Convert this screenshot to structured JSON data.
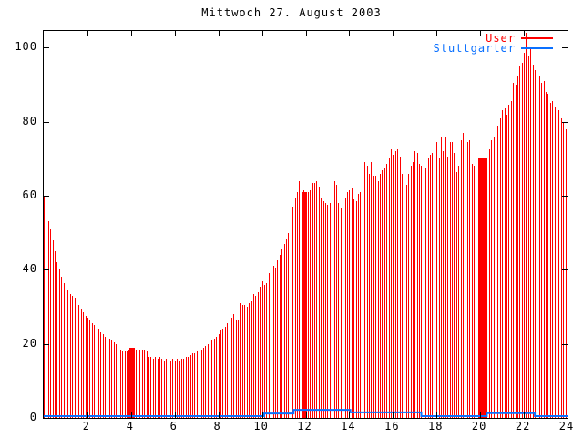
{
  "title": "Mittwoch 27. August 2003",
  "legend": {
    "entries": [
      {
        "label": "User",
        "color": "#ff0000"
      },
      {
        "label": "Stuttgarter",
        "color": "#0a70ff"
      }
    ]
  },
  "colors": {
    "foreground": "#000000",
    "background": "#ffffff",
    "user_series": "#ff0000",
    "stuttgarter_series": "#0a70ff"
  },
  "chart_data": {
    "type": "bar",
    "title": "Mittwoch 27. August 2003",
    "xlabel": "",
    "ylabel": "",
    "xlim": [
      0,
      24
    ],
    "ylim": [
      0,
      104.5
    ],
    "xticks": [
      2,
      4,
      6,
      8,
      10,
      12,
      14,
      16,
      18,
      20,
      22,
      24
    ],
    "yticks": [
      0,
      20,
      40,
      60,
      80,
      100
    ],
    "grid": false,
    "legend_position": "top-right",
    "series": [
      {
        "name": "User",
        "style": "impulses",
        "color": "#ff0000",
        "x_start": 0.0,
        "x_step": 0.1,
        "values": [
          60,
          54,
          53,
          51,
          48,
          45,
          42,
          40,
          38,
          36.5,
          35.5,
          34.5,
          33.5,
          33,
          32.5,
          31,
          30.5,
          29.5,
          28.5,
          27.5,
          27,
          26.5,
          25.5,
          25,
          24.5,
          24,
          23,
          22.5,
          22,
          21.5,
          21.5,
          21,
          20.5,
          20,
          19.5,
          18.5,
          18,
          18,
          18,
          18.5,
          19,
          19,
          18.5,
          18.5,
          18.5,
          18.5,
          18.5,
          18,
          16.5,
          16.5,
          16,
          16.5,
          16,
          16.5,
          16,
          15.5,
          16,
          15.5,
          15.5,
          16,
          15.5,
          16,
          15.5,
          16,
          16,
          16.5,
          16.5,
          17,
          17.5,
          17.5,
          18,
          18.5,
          18.5,
          19,
          19.5,
          20,
          20.5,
          21,
          21.5,
          22,
          22.5,
          23.5,
          24,
          24.5,
          25.5,
          27.5,
          27,
          28,
          26.5,
          26.5,
          31,
          30.5,
          30.5,
          30,
          31,
          31.5,
          33.5,
          33,
          34,
          35.5,
          37,
          36,
          36.5,
          39,
          38.5,
          41,
          40.5,
          42.5,
          44,
          45.5,
          47,
          48.5,
          50,
          54,
          57,
          59.5,
          61,
          64,
          61.5,
          61.5,
          61,
          61,
          61.5,
          63.5,
          63.5,
          64,
          62.5,
          59.5,
          58.5,
          58,
          57.5,
          58,
          58.5,
          64,
          63,
          58,
          56.5,
          56.5,
          59.5,
          61,
          61.5,
          62,
          59,
          58.5,
          60.5,
          61,
          64.5,
          69,
          68,
          66,
          69,
          65.5,
          65.5,
          64,
          66,
          67,
          67.5,
          68.5,
          70,
          72.5,
          71,
          72,
          72.5,
          70.5,
          66,
          62,
          63,
          66,
          68,
          69,
          72,
          71.5,
          68.5,
          68,
          67,
          67.5,
          70,
          71,
          71.5,
          74,
          74.5,
          70,
          76,
          72,
          76,
          70.5,
          74.5,
          74.5,
          71.5,
          66.5,
          68,
          75,
          77,
          76,
          74.5,
          75,
          68.5,
          68,
          68.5,
          70,
          70,
          70,
          70,
          70,
          72.5,
          75,
          76,
          79,
          79,
          81,
          83,
          83.5,
          82,
          84.5,
          85.5,
          90.5,
          90,
          92.5,
          95,
          96,
          98.5,
          104,
          97.5,
          99.5,
          95.5,
          94,
          96,
          92.5,
          90.5,
          91,
          88,
          87.5,
          85,
          85.5,
          84,
          82,
          83,
          81,
          80,
          78
        ]
      },
      {
        "name": "Stuttgarter",
        "style": "steps",
        "color": "#0a70ff",
        "steps": [
          [
            0,
            0.5
          ],
          [
            10.1,
            1.2
          ],
          [
            11.45,
            2.2
          ],
          [
            14.05,
            1.5
          ],
          [
            17.3,
            0.5
          ],
          [
            20.3,
            1.3
          ],
          [
            22.5,
            0.5
          ]
        ],
        "x_end": 24
      }
    ],
    "solid_blocks": [
      {
        "x_start": 3.93,
        "x_end": 4.17,
        "value": 19
      },
      {
        "x_start": 11.87,
        "x_end": 12.05,
        "value": 61
      },
      {
        "x_start": 19.97,
        "x_end": 20.3,
        "value": 70
      }
    ]
  }
}
